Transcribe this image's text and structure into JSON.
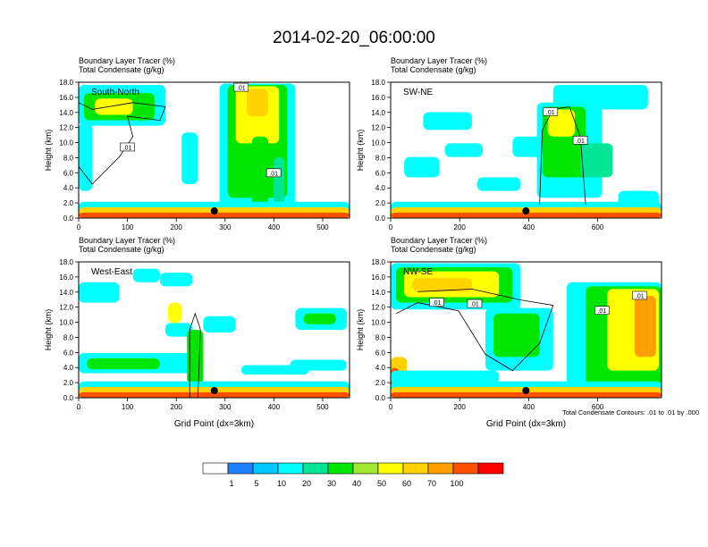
{
  "title": "2014-02-20_06:00:00",
  "contour_note": "Total Condensate Contours: .01 to .01 by .000",
  "colorbar": {
    "colors": [
      "#ffffff",
      "#1e82ff",
      "#00c8ff",
      "#00ffff",
      "#00e696",
      "#00e600",
      "#a0e632",
      "#ffff00",
      "#ffd200",
      "#ffa000",
      "#ff5000",
      "#ff0000"
    ],
    "labels": [
      "1",
      "5",
      "10",
      "20",
      "30",
      "40",
      "50",
      "60",
      "70",
      "100"
    ]
  },
  "chart_data": [
    {
      "type": "heatmap",
      "panel_label": "South-North",
      "subtitle_line1": "Boundary Layer Tracer   (%)",
      "subtitle_line2": "Total Condensate   (g/kg)",
      "ylabel": "Height (km)",
      "xlabel": "",
      "xlim": [
        0,
        555
      ],
      "ylim": [
        0,
        18
      ],
      "xticks": [
        0,
        100,
        200,
        300,
        400,
        500
      ],
      "yticks": [
        "0.0",
        "2.0",
        "4.0",
        "6.0",
        "8.0",
        "10.0",
        "12.0",
        "14.0",
        "16.0",
        "18.0"
      ],
      "marker_x": 278,
      "contour_labels": [
        ".01",
        ".01",
        ".01"
      ]
    },
    {
      "type": "heatmap",
      "panel_label": "SW-NE",
      "subtitle_line1": "Boundary Layer Tracer   (%)",
      "subtitle_line2": "Total Condensate   (g/kg)",
      "ylabel": "Height (km)",
      "xlabel": "",
      "xlim": [
        0,
        785
      ],
      "ylim": [
        0,
        18
      ],
      "xticks": [
        0,
        200,
        400,
        600
      ],
      "yticks": [
        "0.0",
        "2.0",
        "4.0",
        "6.0",
        "8.0",
        "10.0",
        "12.0",
        "14.0",
        "16.0",
        "18.0"
      ],
      "marker_x": 392,
      "contour_labels": [
        ".01",
        ".01"
      ]
    },
    {
      "type": "heatmap",
      "panel_label": "West-East",
      "subtitle_line1": "Boundary Layer Tracer   (%)",
      "subtitle_line2": "Total Condensate   (g/kg)",
      "ylabel": "Height (km)",
      "xlabel": "Grid Point (dx=3km)",
      "xlim": [
        0,
        555
      ],
      "ylim": [
        0,
        18
      ],
      "xticks": [
        0,
        100,
        200,
        300,
        400,
        500
      ],
      "yticks": [
        "0.0",
        "2.0",
        "4.0",
        "6.0",
        "8.0",
        "10.0",
        "12.0",
        "14.0",
        "16.0",
        "18.0"
      ],
      "marker_x": 278,
      "contour_labels": []
    },
    {
      "type": "heatmap",
      "panel_label": "NW-SE",
      "subtitle_line1": "Boundary Layer Tracer   (%)",
      "subtitle_line2": "Total Condensate   (g/kg)",
      "ylabel": "Height (km)",
      "xlabel": "Grid Point (dx=3km)",
      "xlim": [
        0,
        785
      ],
      "ylim": [
        0,
        18
      ],
      "xticks": [
        0,
        200,
        400,
        600
      ],
      "yticks": [
        "0.0",
        "2.0",
        "4.0",
        "6.0",
        "8.0",
        "10.0",
        "12.0",
        "14.0",
        "16.0",
        "18.0"
      ],
      "marker_x": 392,
      "contour_labels": [
        ".01",
        ".01",
        ".01",
        ".01"
      ]
    }
  ]
}
